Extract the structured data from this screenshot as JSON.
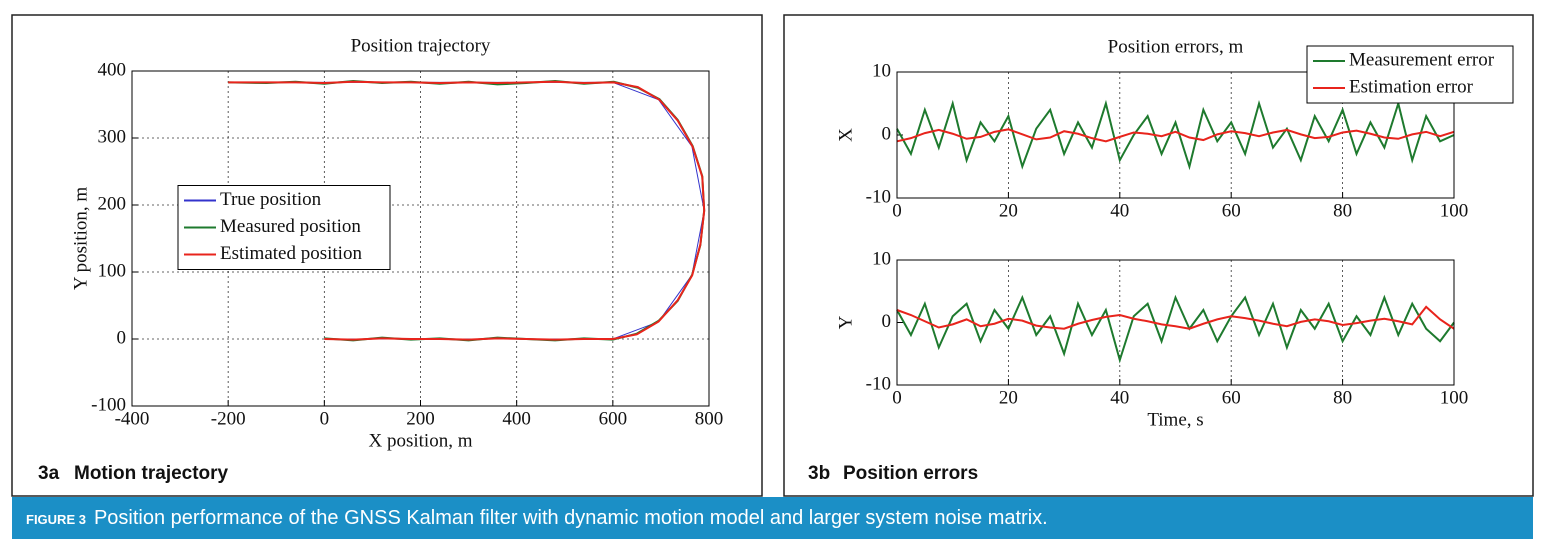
{
  "figure": {
    "label": "FIGURE 3",
    "caption": "Position performance of the GNSS Kalman filter with dynamic motion model and larger system noise matrix."
  },
  "panels": [
    {
      "label": "3a",
      "title": "Motion trajectory"
    },
    {
      "label": "3b",
      "title": "Position errors"
    }
  ],
  "chart_data": [
    {
      "type": "line",
      "title": "Position trajectory",
      "x_label": "X position, m",
      "y_label": "Y position, m",
      "xlim": [
        -400,
        800
      ],
      "xticks": [
        -400,
        -200,
        0,
        200,
        400,
        600,
        800
      ],
      "ylim": [
        -100,
        400
      ],
      "yticks": [
        -100,
        0,
        100,
        200,
        300,
        400
      ],
      "grid": "both",
      "legend": "center left",
      "series": [
        {
          "name": "True position",
          "color": "#3333cc",
          "x": [
            0,
            200,
            400,
            600,
            695,
            764.5,
            790,
            764.5,
            695,
            600,
            400,
            200,
            0,
            -200
          ],
          "values": [
            0,
            0,
            0,
            0,
            25.7,
            95.7,
            191.5,
            287.3,
            357.3,
            383,
            383,
            383,
            383,
            383
          ]
        },
        {
          "name": "Measured position",
          "color": "#1e7a2e",
          "x": [
            0,
            60,
            120,
            180,
            240,
            300,
            360,
            420,
            480,
            540,
            600,
            650,
            695,
            735,
            765,
            782,
            790,
            786,
            766,
            735,
            697,
            652,
            602,
            540,
            480,
            420,
            360,
            300,
            240,
            180,
            120,
            60,
            0,
            -60,
            -120,
            -200
          ],
          "values": [
            1,
            -2,
            2,
            -1,
            1,
            -2,
            2,
            0,
            -2,
            1,
            -1,
            8,
            27,
            57,
            96,
            140,
            192,
            243,
            288,
            327,
            358,
            375,
            384,
            381,
            385,
            382,
            380,
            384,
            381,
            384,
            382,
            385,
            381,
            384,
            382,
            383
          ]
        },
        {
          "name": "Estimated position",
          "color": "#e8241c",
          "x": [
            0,
            60,
            120,
            180,
            240,
            300,
            360,
            420,
            480,
            540,
            600,
            650,
            695,
            735,
            765,
            782,
            790,
            786,
            766,
            735,
            697,
            652,
            602,
            540,
            480,
            420,
            360,
            300,
            240,
            180,
            120,
            60,
            0,
            -60,
            -120,
            -200
          ],
          "values": [
            0,
            -1,
            1,
            0,
            0,
            -1,
            1,
            0,
            -1,
            0,
            0,
            7,
            26,
            58,
            95,
            141,
            191,
            242,
            287,
            326,
            357,
            376,
            383,
            382,
            384,
            383,
            382,
            383,
            382,
            383,
            383,
            384,
            382,
            383,
            383,
            383
          ]
        }
      ]
    },
    {
      "type": "line",
      "title": "Position errors, m",
      "y_label": "X",
      "xlim": [
        0,
        100
      ],
      "xticks": [
        0,
        20,
        40,
        60,
        80,
        100
      ],
      "ylim": [
        -10,
        10
      ],
      "yticks": [
        -10,
        0,
        10
      ],
      "grid": "x",
      "legend": "upper right",
      "x": [
        0,
        2.5,
        5,
        7.5,
        10,
        12.5,
        15,
        17.5,
        20,
        22.5,
        25,
        27.5,
        30,
        32.5,
        35,
        37.5,
        40,
        42.5,
        45,
        47.5,
        50,
        52.5,
        55,
        57.5,
        60,
        62.5,
        65,
        67.5,
        70,
        72.5,
        75,
        77.5,
        80,
        82.5,
        85,
        87.5,
        90,
        92.5,
        95,
        97.5,
        100
      ],
      "series": [
        {
          "name": "Measurement error",
          "color": "#1e7a2e",
          "values": [
            1,
            -3,
            4,
            -2,
            5,
            -4,
            2,
            -1,
            3,
            -5,
            1,
            4,
            -3,
            2,
            -2,
            5,
            -4,
            0,
            3,
            -3,
            2,
            -5,
            4,
            -1,
            2,
            -3,
            5,
            -2,
            1,
            -4,
            3,
            -1,
            4,
            -3,
            2,
            -2,
            5,
            -4,
            3,
            -1,
            0
          ]
        },
        {
          "name": "Estimation error",
          "color": "#e8241c",
          "values": [
            -1,
            -0.5,
            0.3,
            0.8,
            0.2,
            -0.6,
            -0.3,
            0.5,
            0.9,
            0.1,
            -0.7,
            -0.4,
            0.6,
            0.2,
            -0.5,
            -1,
            -0.3,
            0.4,
            0.2,
            -0.2,
            0.5,
            -0.4,
            -0.8,
            0.1,
            0.6,
            0.3,
            -0.2,
            0.4,
            0.8,
            0.1,
            -0.5,
            -0.3,
            0.4,
            0.7,
            0.2,
            -0.4,
            -0.6,
            0.1,
            0.5,
            -0.2,
            0.5
          ]
        }
      ]
    },
    {
      "type": "line",
      "y_label": "Y",
      "x_label": "Time, s",
      "xlim": [
        0,
        100
      ],
      "xticks": [
        0,
        20,
        40,
        60,
        80,
        100
      ],
      "ylim": [
        -10,
        10
      ],
      "yticks": [
        -10,
        0,
        10
      ],
      "grid": "x",
      "x": [
        0,
        2.5,
        5,
        7.5,
        10,
        12.5,
        15,
        17.5,
        20,
        22.5,
        25,
        27.5,
        30,
        32.5,
        35,
        37.5,
        40,
        42.5,
        45,
        47.5,
        50,
        52.5,
        55,
        57.5,
        60,
        62.5,
        65,
        67.5,
        70,
        72.5,
        75,
        77.5,
        80,
        82.5,
        85,
        87.5,
        90,
        92.5,
        95,
        97.5,
        100
      ],
      "series": [
        {
          "color": "#1e7a2e",
          "values": [
            2,
            -2,
            3,
            -4,
            1,
            3,
            -3,
            2,
            -1,
            4,
            -2,
            1,
            -5,
            3,
            -2,
            2,
            -6,
            1,
            3,
            -3,
            4,
            -1,
            2,
            -3,
            1,
            4,
            -2,
            3,
            -4,
            2,
            -1,
            3,
            -3,
            1,
            -2,
            4,
            -2,
            3,
            -1,
            -3,
            0
          ]
        },
        {
          "color": "#e8241c",
          "values": [
            2,
            1.2,
            0.2,
            -0.8,
            -0.3,
            0.5,
            -0.6,
            -0.2,
            0.6,
            0.3,
            -0.5,
            -0.8,
            -1,
            -0.2,
            0.4,
            0.9,
            1.2,
            0.6,
            0.2,
            -0.3,
            -0.6,
            -1,
            -0.2,
            0.5,
            1,
            0.7,
            0.3,
            -0.2,
            -0.6,
            0.1,
            0.5,
            0.2,
            -0.4,
            -0.1,
            0.3,
            0.6,
            0.2,
            -0.3,
            2.5,
            0.5,
            -1
          ]
        }
      ]
    }
  ]
}
